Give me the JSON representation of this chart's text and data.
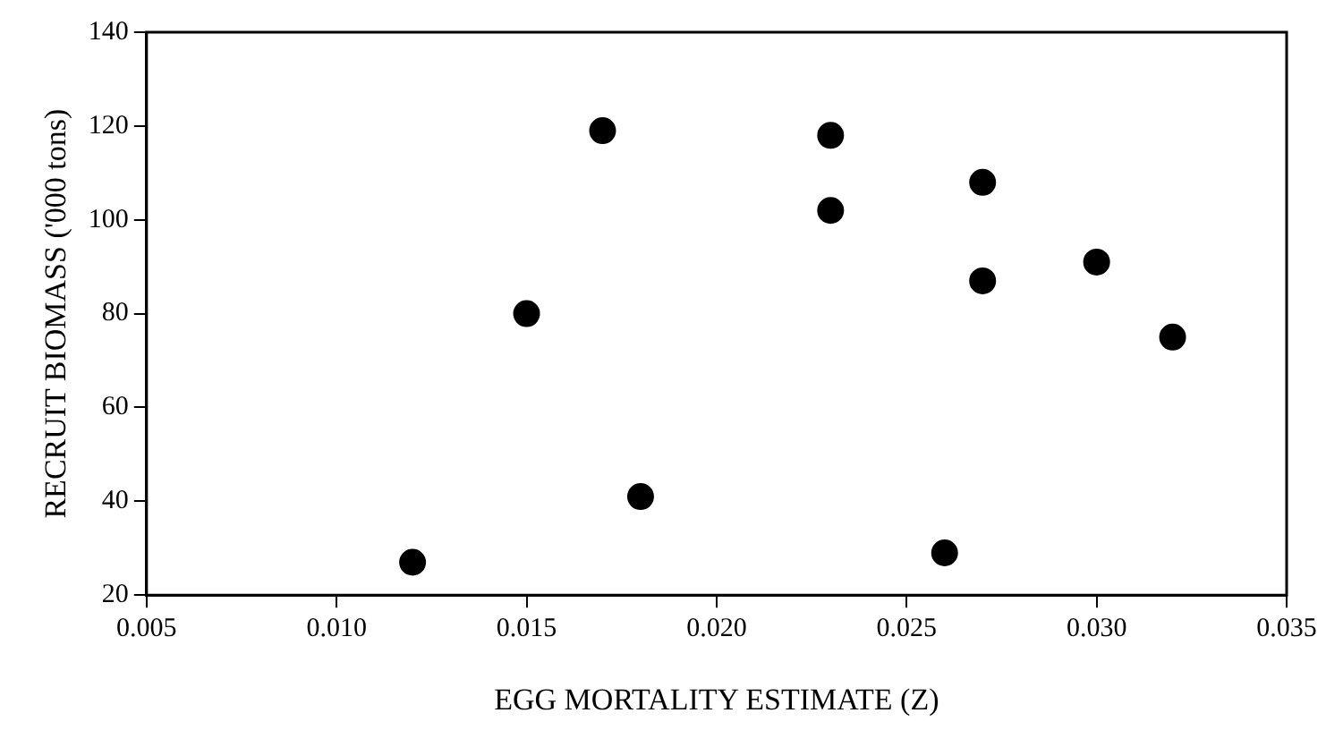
{
  "chart_data": {
    "type": "scatter",
    "xlabel": "EGG MORTALITY ESTIMATE (Z)",
    "ylabel": "RECRUIT BIOMASS ('000 tons)",
    "x": [
      0.012,
      0.015,
      0.017,
      0.018,
      0.023,
      0.023,
      0.026,
      0.027,
      0.027,
      0.03,
      0.032
    ],
    "values": [
      27,
      80,
      119,
      41,
      118,
      102,
      29,
      108,
      87,
      91,
      75
    ],
    "color": "#000000",
    "marker": "circle",
    "xlim": [
      0.005,
      0.035
    ],
    "xticks": [
      {
        "value": 0.005,
        "label": "0.005"
      },
      {
        "value": 0.01,
        "label": "0.010"
      },
      {
        "value": 0.015,
        "label": "0.015"
      },
      {
        "value": 0.02,
        "label": "0.020"
      },
      {
        "value": 0.025,
        "label": "0.025"
      },
      {
        "value": 0.03,
        "label": "0.030"
      },
      {
        "value": 0.035,
        "label": "0.035"
      }
    ],
    "ylim": [
      20,
      140
    ],
    "yticks": [
      20,
      40,
      60,
      80,
      100,
      120,
      140
    ],
    "grid": false,
    "legend": false
  }
}
